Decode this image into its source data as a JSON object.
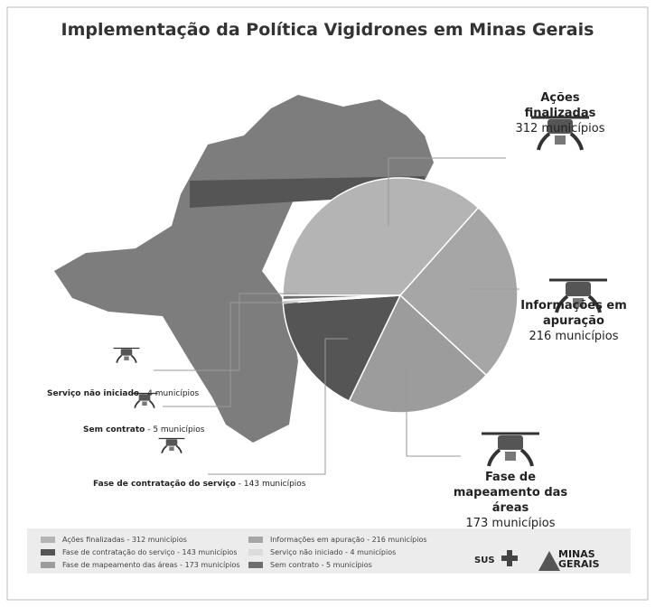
{
  "chart_data": {
    "type": "pie",
    "title": "Implementação da Política Vigidrones em Minas Gerais",
    "categories": [
      "Ações finalizadas",
      "Informações em apuração",
      "Fase de mapeamento das áreas",
      "Fase de contratação do serviço",
      "Serviço não iniciado",
      "Sem contrato"
    ],
    "values": [
      312,
      216,
      173,
      143,
      4,
      5
    ],
    "value_labels": [
      "312 municípios",
      "216 municípios",
      "173 municípios",
      "143 municípios",
      "4 municípios",
      "5 municípios"
    ],
    "colors": [
      "#b4b4b4",
      "#a6a6a6",
      "#9c9c9c",
      "#555555",
      "#dcdcdc",
      "#6e6e6e"
    ],
    "legend": [
      "Ações finalizadas - 312 municípios",
      "Informações em apuração - 216 municípios",
      "Fase de mapeamento das áreas - 173 municípios",
      "Fase de contratação do serviço - 143 municípios",
      "Serviço não iniciado - 4 municípios",
      "Sem contrato - 5 municípios"
    ]
  },
  "footer": {
    "sus": "SUS",
    "state": "MINAS GERAIS"
  }
}
